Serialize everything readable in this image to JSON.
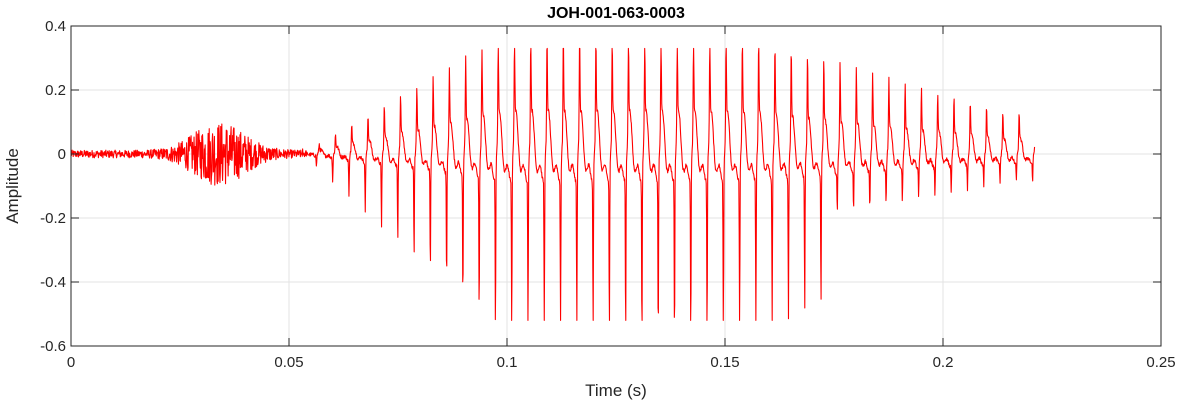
{
  "chart_data": {
    "type": "line",
    "title": "JOH-001-063-0003",
    "xlabel": "Time (s)",
    "ylabel": "Amplitude",
    "xlim": [
      0,
      0.25
    ],
    "ylim": [
      -0.6,
      0.4
    ],
    "xticks": [
      0,
      0.05,
      0.1,
      0.15,
      0.2,
      0.25
    ],
    "xtick_labels": [
      "0",
      "0.05",
      "0.1",
      "0.15",
      "0.2",
      "0.25"
    ],
    "yticks": [
      -0.6,
      -0.4,
      -0.2,
      0,
      0.2,
      0.4
    ],
    "ytick_labels": [
      "-0.6",
      "-0.4",
      "-0.2",
      "0",
      "0.2",
      "0.4"
    ],
    "grid": true,
    "series": [
      {
        "color": "#ff0000",
        "signal": {
          "duration_s": 0.221,
          "noise_segment": {
            "start_s": 0.0,
            "end_s": 0.054,
            "burst_center_s": 0.034,
            "burst_peak_pos": 0.16,
            "burst_peak_neg": -0.16,
            "baseline_noise": 0.012
          },
          "voiced_segment": {
            "start_s": 0.053,
            "end_s": 0.221,
            "peak_pos": 0.33,
            "peak_neg": -0.52,
            "peak_time_s": 0.11,
            "cycles": 45
          }
        }
      }
    ]
  }
}
